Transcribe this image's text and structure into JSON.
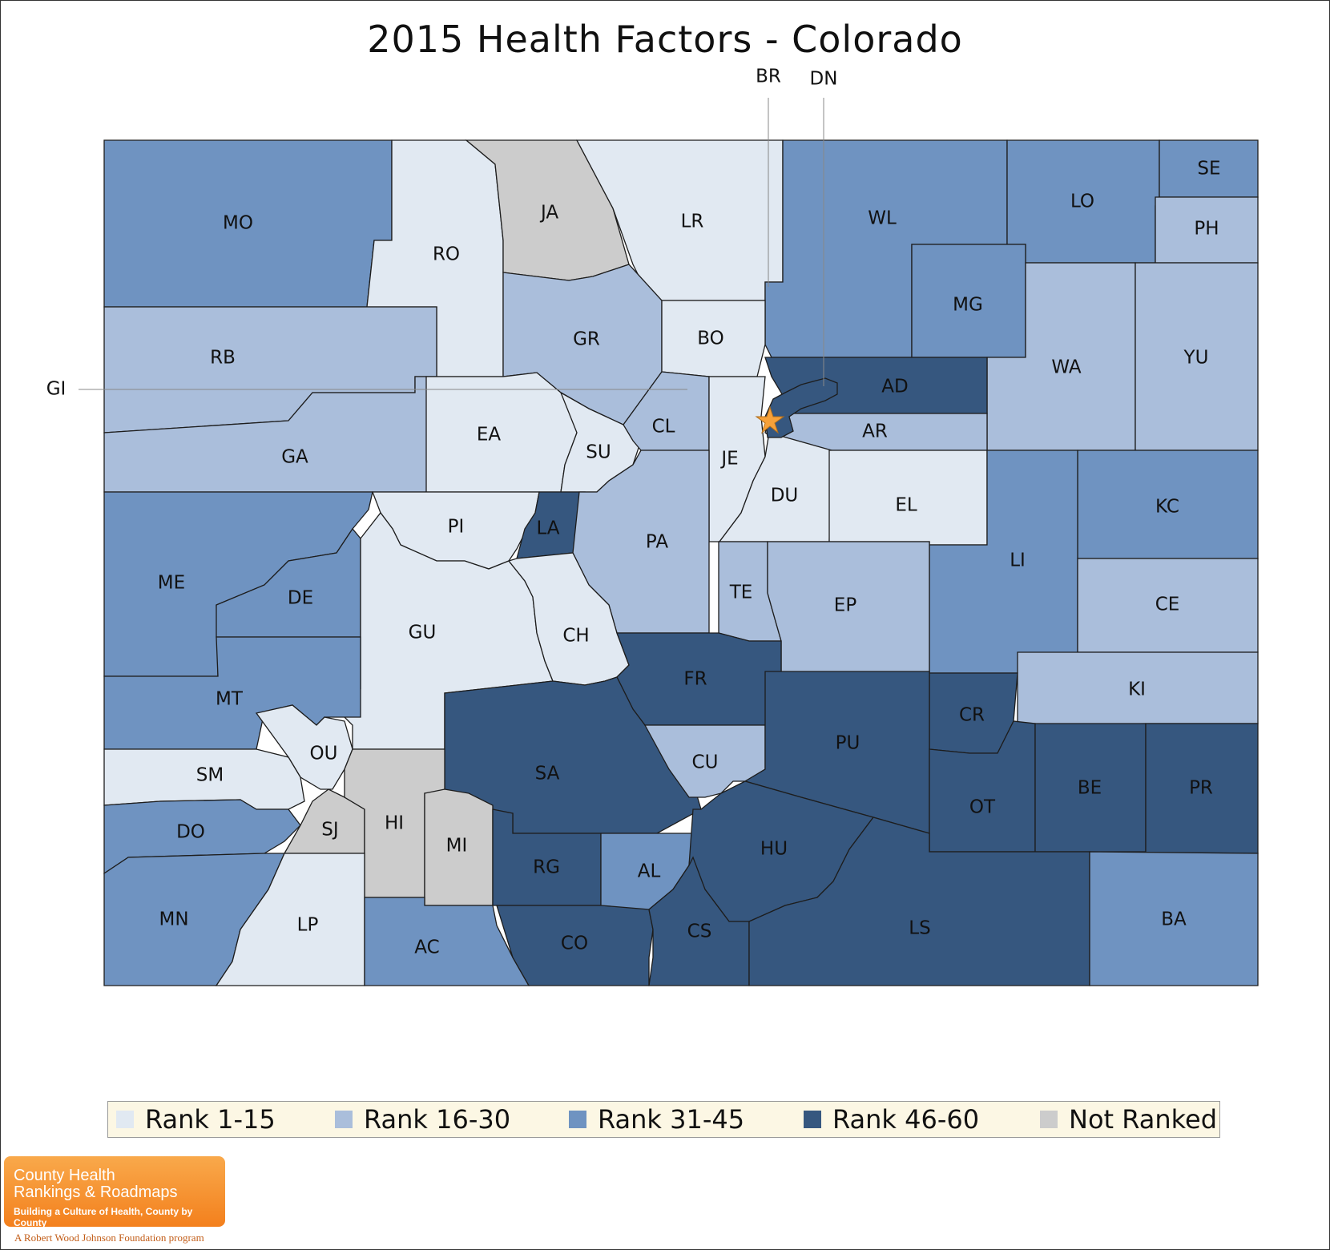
{
  "title": "2015 Health Factors - Colorado",
  "colors": {
    "rank_1_15": "#e1e9f2",
    "rank_16_30": "#aabedb",
    "rank_31_45": "#6f93c1",
    "rank_46_60": "#36577f",
    "not_ranked": "#cccccc",
    "star": "#f6a13a"
  },
  "legend": [
    {
      "key": "rank_1_15",
      "label": "Rank 1-15"
    },
    {
      "key": "rank_16_30",
      "label": "Rank 16-30"
    },
    {
      "key": "rank_31_45",
      "label": "Rank 31-45"
    },
    {
      "key": "rank_46_60",
      "label": "Rank 46-60"
    },
    {
      "key": "not_ranked",
      "label": "Not Ranked"
    }
  ],
  "callouts": {
    "br": "BR",
    "dn": "DN",
    "gi": "GI"
  },
  "counties": [
    {
      "abbr": "MO",
      "rank_group": "rank_31_45"
    },
    {
      "abbr": "RO",
      "rank_group": "rank_1_15"
    },
    {
      "abbr": "JA",
      "rank_group": "not_ranked"
    },
    {
      "abbr": "LR",
      "rank_group": "rank_1_15"
    },
    {
      "abbr": "WL",
      "rank_group": "rank_31_45"
    },
    {
      "abbr": "LO",
      "rank_group": "rank_31_45"
    },
    {
      "abbr": "SE",
      "rank_group": "rank_31_45"
    },
    {
      "abbr": "PH",
      "rank_group": "rank_16_30"
    },
    {
      "abbr": "RB",
      "rank_group": "rank_16_30"
    },
    {
      "abbr": "GR",
      "rank_group": "rank_16_30"
    },
    {
      "abbr": "BO",
      "rank_group": "rank_1_15"
    },
    {
      "abbr": "MG",
      "rank_group": "rank_31_45"
    },
    {
      "abbr": "WA",
      "rank_group": "rank_16_30"
    },
    {
      "abbr": "YU",
      "rank_group": "rank_16_30"
    },
    {
      "abbr": "GA",
      "rank_group": "rank_16_30"
    },
    {
      "abbr": "EA",
      "rank_group": "rank_1_15"
    },
    {
      "abbr": "SU",
      "rank_group": "rank_1_15"
    },
    {
      "abbr": "CL",
      "rank_group": "rank_16_30"
    },
    {
      "abbr": "JE",
      "rank_group": "rank_1_15"
    },
    {
      "abbr": "AD",
      "rank_group": "rank_46_60"
    },
    {
      "abbr": "AR",
      "rank_group": "rank_16_30"
    },
    {
      "abbr": "DU",
      "rank_group": "rank_1_15"
    },
    {
      "abbr": "EL",
      "rank_group": "rank_1_15"
    },
    {
      "abbr": "KC",
      "rank_group": "rank_31_45"
    },
    {
      "abbr": "ME",
      "rank_group": "rank_31_45"
    },
    {
      "abbr": "PI",
      "rank_group": "rank_1_15"
    },
    {
      "abbr": "LA",
      "rank_group": "rank_46_60"
    },
    {
      "abbr": "PA",
      "rank_group": "rank_16_30"
    },
    {
      "abbr": "LI",
      "rank_group": "rank_31_45"
    },
    {
      "abbr": "DE",
      "rank_group": "rank_31_45"
    },
    {
      "abbr": "GU",
      "rank_group": "rank_1_15"
    },
    {
      "abbr": "TE",
      "rank_group": "rank_16_30"
    },
    {
      "abbr": "EP",
      "rank_group": "rank_16_30"
    },
    {
      "abbr": "CE",
      "rank_group": "rank_16_30"
    },
    {
      "abbr": "CH",
      "rank_group": "rank_1_15"
    },
    {
      "abbr": "MT",
      "rank_group": "rank_31_45"
    },
    {
      "abbr": "FR",
      "rank_group": "rank_46_60"
    },
    {
      "abbr": "KI",
      "rank_group": "rank_16_30"
    },
    {
      "abbr": "CR",
      "rank_group": "rank_46_60"
    },
    {
      "abbr": "OU",
      "rank_group": "rank_1_15"
    },
    {
      "abbr": "SM",
      "rank_group": "rank_1_15"
    },
    {
      "abbr": "SA",
      "rank_group": "rank_46_60"
    },
    {
      "abbr": "CU",
      "rank_group": "rank_16_30"
    },
    {
      "abbr": "PU",
      "rank_group": "rank_46_60"
    },
    {
      "abbr": "OT",
      "rank_group": "rank_46_60"
    },
    {
      "abbr": "BE",
      "rank_group": "rank_46_60"
    },
    {
      "abbr": "PR",
      "rank_group": "rank_46_60"
    },
    {
      "abbr": "DO",
      "rank_group": "rank_31_45"
    },
    {
      "abbr": "SJ",
      "rank_group": "not_ranked"
    },
    {
      "abbr": "HI",
      "rank_group": "not_ranked"
    },
    {
      "abbr": "MI",
      "rank_group": "not_ranked"
    },
    {
      "abbr": "RG",
      "rank_group": "rank_46_60"
    },
    {
      "abbr": "AL",
      "rank_group": "rank_31_45"
    },
    {
      "abbr": "HU",
      "rank_group": "rank_46_60"
    },
    {
      "abbr": "MN",
      "rank_group": "rank_31_45"
    },
    {
      "abbr": "LP",
      "rank_group": "rank_1_15"
    },
    {
      "abbr": "AC",
      "rank_group": "rank_31_45"
    },
    {
      "abbr": "CO",
      "rank_group": "rank_46_60"
    },
    {
      "abbr": "CS",
      "rank_group": "rank_46_60"
    },
    {
      "abbr": "LS",
      "rank_group": "rank_46_60"
    },
    {
      "abbr": "BA",
      "rank_group": "rank_31_45"
    },
    {
      "abbr": "DN",
      "rank_group": "rank_46_60"
    }
  ],
  "logo": {
    "line1": "County Health",
    "line2": "Rankings & Roadmaps",
    "tagline": "Building a Culture of Health, County by County",
    "foundation": "A Robert Wood Johnson Foundation program"
  }
}
